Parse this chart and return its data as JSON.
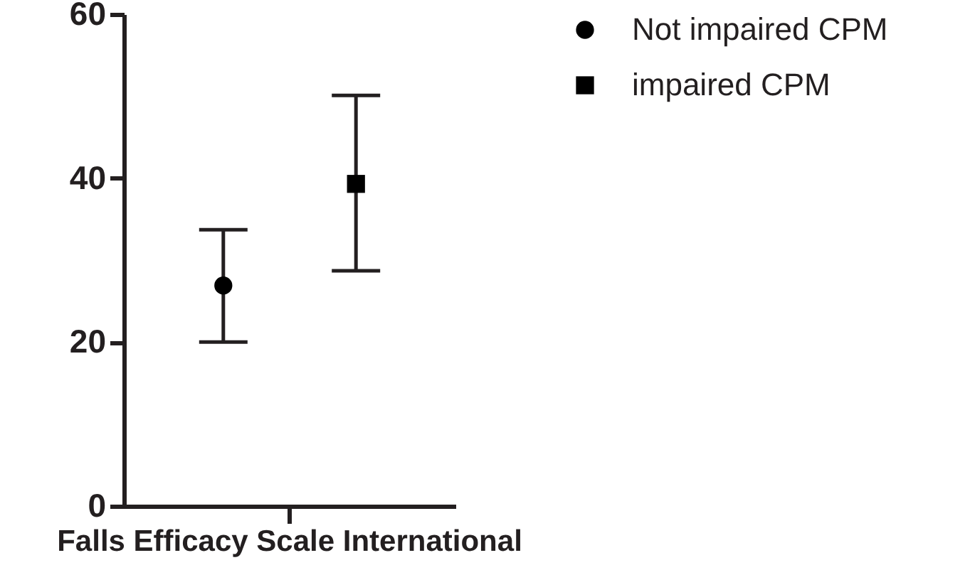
{
  "chart_data": {
    "type": "scatter",
    "categories": [
      "Falls Efficacy Scale International"
    ],
    "series": [
      {
        "name": "Not impaired CPM",
        "color": "#000000",
        "marker": "circle",
        "values": [
          26.9
        ],
        "errors": [
          [
            20.0,
            33.7
          ]
        ]
      },
      {
        "name": "impaired CPM",
        "color": "#000000",
        "marker": "square",
        "values": [
          39.3
        ],
        "errors": [
          [
            28.7,
            50.1
          ]
        ]
      }
    ],
    "ylim": [
      0,
      60
    ],
    "yticks": [
      0,
      20,
      40,
      60
    ],
    "grid": false,
    "legend": "top right"
  }
}
